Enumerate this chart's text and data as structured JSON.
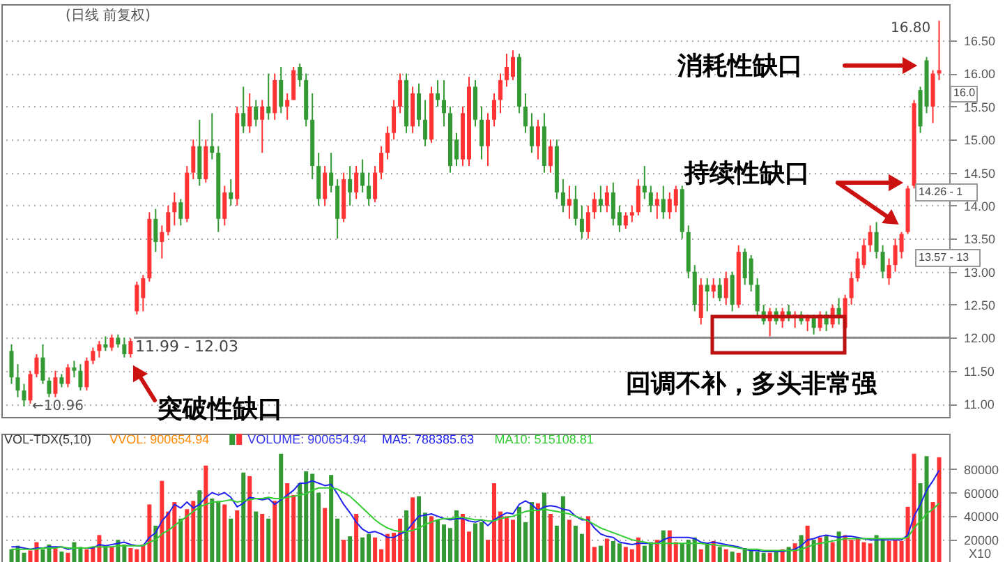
{
  "chart_data": [
    {
      "type": "candlestick",
      "title": "(日线 前复权)",
      "categories": [
        null,
        null,
        null,
        null,
        null,
        null,
        null,
        null,
        null,
        null,
        null,
        null,
        null,
        null,
        null,
        null,
        null,
        null,
        null,
        null,
        null,
        null,
        null,
        null,
        null,
        null,
        null,
        null,
        null,
        null,
        null,
        null,
        null,
        null,
        null,
        null,
        null,
        null,
        null,
        null,
        null,
        null,
        null,
        null,
        null,
        null,
        null,
        null,
        null,
        null,
        null,
        null,
        null,
        null,
        null,
        null,
        null,
        null,
        null,
        null,
        null,
        null,
        null,
        null,
        null,
        null,
        null,
        null,
        null,
        null,
        null,
        null,
        null,
        null,
        null,
        null,
        null,
        null,
        null,
        null,
        null,
        null,
        null,
        null,
        null,
        null,
        null,
        null,
        null,
        null,
        null,
        null,
        null,
        null,
        null,
        null,
        null,
        null,
        null,
        null,
        null,
        null,
        null,
        null,
        null,
        null,
        null,
        null,
        null,
        null,
        null,
        null,
        null,
        null,
        null,
        null,
        null,
        null,
        null,
        null,
        null,
        null,
        null,
        null,
        null,
        null,
        null,
        null,
        null,
        null,
        null,
        null,
        null,
        null,
        null,
        null,
        null,
        null,
        null,
        null,
        null,
        null,
        null,
        null,
        null,
        null,
        null,
        null,
        null
      ],
      "ohlc": [
        [
          11.8,
          11.9,
          11.3,
          11.4
        ],
        [
          11.4,
          11.6,
          11.1,
          11.2
        ],
        [
          11.2,
          11.3,
          10.96,
          11.05
        ],
        [
          11.05,
          11.5,
          11.0,
          11.45
        ],
        [
          11.45,
          11.75,
          11.4,
          11.7
        ],
        [
          11.7,
          11.9,
          11.3,
          11.35
        ],
        [
          11.35,
          11.4,
          11.1,
          11.15
        ],
        [
          11.15,
          11.5,
          11.1,
          11.4
        ],
        [
          11.4,
          11.45,
          11.25,
          11.3
        ],
        [
          11.3,
          11.6,
          11.25,
          11.55
        ],
        [
          11.55,
          11.65,
          11.4,
          11.5
        ],
        [
          11.5,
          11.6,
          11.2,
          11.25
        ],
        [
          11.25,
          11.7,
          11.2,
          11.65
        ],
        [
          11.65,
          11.85,
          11.6,
          11.8
        ],
        [
          11.8,
          11.95,
          11.7,
          11.9
        ],
        [
          11.9,
          12.02,
          11.8,
          11.85
        ],
        [
          11.85,
          12.05,
          11.8,
          12.0
        ],
        [
          12.0,
          12.05,
          11.85,
          11.9
        ],
        [
          11.9,
          12.0,
          11.7,
          11.75
        ],
        [
          11.75,
          11.99,
          11.7,
          11.95
        ],
        [
          12.4,
          12.85,
          12.35,
          12.8
        ],
        [
          12.6,
          12.95,
          12.4,
          12.9
        ],
        [
          12.9,
          13.9,
          12.85,
          13.8
        ],
        [
          13.8,
          13.95,
          13.3,
          13.45
        ],
        [
          13.45,
          13.7,
          13.2,
          13.6
        ],
        [
          13.6,
          14.0,
          13.55,
          13.9
        ],
        [
          13.9,
          14.2,
          13.7,
          14.05
        ],
        [
          14.05,
          14.1,
          13.7,
          13.8
        ],
        [
          13.8,
          14.6,
          13.75,
          14.5
        ],
        [
          14.5,
          15.0,
          14.4,
          14.9
        ],
        [
          14.9,
          15.3,
          14.3,
          14.4
        ],
        [
          14.4,
          15.0,
          14.35,
          14.9
        ],
        [
          14.9,
          15.4,
          14.7,
          14.8
        ],
        [
          14.8,
          14.9,
          13.6,
          13.8
        ],
        [
          13.8,
          14.3,
          13.7,
          14.2
        ],
        [
          14.2,
          14.4,
          14.0,
          14.1
        ],
        [
          14.1,
          15.5,
          14.0,
          15.4
        ],
        [
          15.4,
          15.8,
          15.1,
          15.2
        ],
        [
          15.2,
          15.7,
          15.1,
          15.5
        ],
        [
          15.5,
          15.6,
          15.2,
          15.3
        ],
        [
          15.3,
          15.6,
          14.8,
          15.5
        ],
        [
          15.5,
          16.0,
          15.3,
          15.4
        ],
        [
          15.4,
          16.0,
          15.3,
          15.9
        ],
        [
          15.9,
          16.1,
          15.4,
          15.5
        ],
        [
          15.5,
          15.7,
          15.3,
          15.6
        ],
        [
          15.6,
          16.1,
          15.6,
          16.05
        ],
        [
          16.1,
          16.15,
          15.8,
          15.9
        ],
        [
          15.9,
          16.0,
          15.2,
          15.3
        ],
        [
          15.3,
          15.7,
          14.4,
          14.6
        ],
        [
          14.6,
          14.8,
          14.0,
          14.1
        ],
        [
          14.1,
          14.6,
          14.0,
          14.5
        ],
        [
          14.5,
          14.8,
          14.2,
          14.3
        ],
        [
          14.3,
          14.4,
          13.5,
          13.8
        ],
        [
          13.8,
          14.5,
          13.75,
          14.4
        ],
        [
          14.4,
          14.6,
          14.0,
          14.2
        ],
        [
          14.2,
          14.6,
          14.1,
          14.5
        ],
        [
          14.5,
          14.7,
          14.2,
          14.3
        ],
        [
          14.3,
          14.5,
          14.0,
          14.1
        ],
        [
          14.1,
          14.6,
          14.05,
          14.5
        ],
        [
          14.5,
          14.9,
          14.4,
          14.8
        ],
        [
          14.8,
          15.2,
          14.7,
          15.1
        ],
        [
          15.1,
          15.6,
          15.0,
          15.5
        ],
        [
          15.5,
          16.0,
          15.4,
          15.9
        ],
        [
          15.9,
          16.0,
          15.1,
          15.2
        ],
        [
          15.2,
          15.8,
          15.1,
          15.7
        ],
        [
          15.7,
          15.85,
          15.2,
          15.3
        ],
        [
          15.3,
          15.6,
          14.9,
          15.0
        ],
        [
          15.0,
          15.8,
          14.95,
          15.7
        ],
        [
          15.7,
          15.9,
          15.5,
          15.6
        ],
        [
          15.6,
          15.9,
          15.2,
          15.4
        ],
        [
          15.4,
          15.5,
          14.5,
          14.6
        ],
        [
          15.0,
          15.1,
          14.6,
          14.7
        ],
        [
          14.7,
          15.5,
          14.6,
          15.4
        ],
        [
          14.7,
          15.95,
          14.6,
          15.8
        ],
        [
          15.8,
          15.9,
          15.2,
          15.3
        ],
        [
          15.3,
          15.5,
          14.7,
          14.9
        ],
        [
          14.9,
          15.4,
          14.6,
          15.3
        ],
        [
          15.3,
          15.7,
          15.2,
          15.6
        ],
        [
          15.6,
          16.0,
          15.4,
          15.9
        ],
        [
          15.9,
          16.3,
          15.8,
          16.1
        ],
        [
          15.95,
          16.35,
          15.9,
          16.25
        ],
        [
          16.25,
          16.3,
          15.4,
          15.5
        ],
        [
          15.5,
          15.7,
          15.1,
          15.2
        ],
        [
          15.2,
          15.4,
          14.8,
          14.9
        ],
        [
          14.9,
          15.3,
          14.7,
          15.2
        ],
        [
          15.2,
          15.4,
          14.5,
          14.6
        ],
        [
          14.6,
          15.0,
          14.5,
          14.9
        ],
        [
          14.9,
          15.0,
          14.1,
          14.2
        ],
        [
          14.2,
          14.4,
          13.9,
          14.0
        ],
        [
          14.0,
          14.3,
          13.8,
          14.1
        ],
        [
          14.1,
          14.3,
          13.7,
          13.8
        ],
        [
          13.8,
          14.0,
          13.5,
          13.6
        ],
        [
          13.6,
          14.0,
          13.5,
          13.9
        ],
        [
          13.9,
          14.2,
          13.8,
          14.1
        ],
        [
          14.1,
          14.3,
          13.9,
          14.0
        ],
        [
          14.0,
          14.3,
          13.9,
          14.2
        ],
        [
          14.2,
          14.35,
          13.7,
          13.8
        ],
        [
          13.9,
          14.0,
          13.6,
          13.7
        ],
        [
          13.7,
          13.9,
          13.65,
          13.85
        ],
        [
          13.85,
          14.0,
          13.75,
          13.9
        ],
        [
          13.9,
          14.4,
          13.85,
          14.3
        ],
        [
          14.3,
          14.6,
          14.1,
          14.2
        ],
        [
          14.2,
          14.3,
          13.9,
          14.0
        ],
        [
          14.0,
          14.2,
          13.8,
          14.1
        ],
        [
          14.1,
          14.3,
          13.8,
          13.9
        ],
        [
          13.9,
          14.2,
          13.8,
          14.1
        ],
        [
          14.0,
          14.3,
          13.9,
          14.25
        ],
        [
          14.25,
          14.3,
          13.5,
          13.6
        ],
        [
          13.6,
          13.7,
          12.9,
          13.0
        ],
        [
          13.0,
          13.1,
          12.4,
          12.5
        ],
        [
          12.3,
          12.9,
          12.2,
          12.8
        ],
        [
          12.8,
          12.9,
          12.4,
          12.7
        ],
        [
          12.7,
          12.9,
          12.6,
          12.8
        ],
        [
          12.8,
          12.9,
          12.55,
          12.6
        ],
        [
          12.6,
          13.0,
          12.5,
          12.9
        ],
        [
          12.95,
          13.0,
          12.4,
          12.5
        ],
        [
          12.5,
          13.4,
          12.45,
          13.3
        ],
        [
          13.3,
          13.35,
          12.8,
          12.9
        ],
        [
          13.2,
          13.25,
          12.7,
          12.8
        ],
        [
          12.8,
          12.9,
          12.3,
          12.4
        ],
        [
          12.4,
          12.5,
          12.2,
          12.25
        ],
        [
          12.25,
          12.45,
          12.02,
          12.4
        ],
        [
          12.4,
          12.45,
          12.2,
          12.25
        ],
        [
          12.25,
          12.45,
          12.15,
          12.4
        ],
        [
          12.4,
          12.5,
          12.25,
          12.3
        ],
        [
          12.3,
          12.4,
          12.15,
          12.35
        ],
        [
          12.35,
          12.4,
          12.2,
          12.25
        ],
        [
          12.25,
          12.35,
          12.1,
          12.3
        ],
        [
          12.3,
          12.35,
          12.05,
          12.15
        ],
        [
          12.15,
          12.4,
          12.1,
          12.35
        ],
        [
          12.35,
          12.4,
          12.1,
          12.2
        ],
        [
          12.2,
          12.5,
          12.15,
          12.45
        ],
        [
          12.45,
          12.6,
          12.2,
          12.3
        ],
        [
          12.15,
          12.65,
          12.1,
          12.6
        ],
        [
          12.6,
          13.0,
          12.5,
          12.9
        ],
        [
          12.9,
          13.3,
          12.85,
          13.2
        ],
        [
          13.1,
          13.5,
          13.05,
          13.4
        ],
        [
          13.4,
          13.7,
          13.3,
          13.6
        ],
        [
          13.6,
          13.75,
          13.2,
          13.3
        ],
        [
          13.3,
          13.4,
          12.9,
          13.0
        ],
        [
          12.9,
          13.2,
          12.8,
          13.1
        ],
        [
          13.1,
          13.5,
          13.0,
          13.4
        ],
        [
          13.3,
          13.6,
          13.2,
          13.57
        ],
        [
          13.6,
          14.3,
          13.57,
          14.26
        ],
        [
          14.3,
          15.6,
          14.26,
          15.55
        ],
        [
          15.75,
          15.8,
          15.1,
          15.2
        ],
        [
          16.2,
          16.25,
          15.4,
          15.5
        ],
        [
          15.5,
          16.05,
          15.25,
          16.0
        ],
        [
          16.0,
          16.8,
          15.9,
          16.05
        ]
      ],
      "colors": [
        "#339933",
        "#339933",
        "#339933",
        "#ff3333",
        "#ff3333",
        "#339933",
        "#339933",
        "#ff3333",
        "#339933",
        "#ff3333",
        "#339933",
        "#339933",
        "#ff3333",
        "#ff3333",
        "#ff3333",
        "#339933",
        "#ff3333",
        "#339933",
        "#339933",
        "#ff3333",
        "#ff3333",
        "#ff3333",
        "#ff3333",
        "#339933",
        "#ff3333",
        "#ff3333",
        "#ff3333",
        "#339933",
        "#ff3333",
        "#ff3333",
        "#339933",
        "#ff3333",
        "#339933",
        "#339933",
        "#ff3333",
        "#339933",
        "#ff3333",
        "#339933",
        "#ff3333",
        "#339933",
        "#ff3333",
        "#339933",
        "#ff3333",
        "#339933",
        "#ff3333",
        "#ff3333",
        "#339933",
        "#339933",
        "#339933",
        "#339933",
        "#ff3333",
        "#339933",
        "#339933",
        "#ff3333",
        "#339933",
        "#ff3333",
        "#339933",
        "#339933",
        "#ff3333",
        "#ff3333",
        "#ff3333",
        "#ff3333",
        "#ff3333",
        "#339933",
        "#ff3333",
        "#339933",
        "#339933",
        "#ff3333",
        "#339933",
        "#339933",
        "#339933",
        "#339933",
        "#ff3333",
        "#ff3333",
        "#339933",
        "#339933",
        "#ff3333",
        "#ff3333",
        "#ff3333",
        "#ff3333",
        "#ff3333",
        "#339933",
        "#339933",
        "#339933",
        "#ff3333",
        "#339933",
        "#ff3333",
        "#339933",
        "#339933",
        "#ff3333",
        "#339933",
        "#339933",
        "#ff3333",
        "#ff3333",
        "#339933",
        "#ff3333",
        "#339933",
        "#339933",
        "#ff3333",
        "#ff3333",
        "#ff3333",
        "#339933",
        "#339933",
        "#ff3333",
        "#339933",
        "#ff3333",
        "#ff3333",
        "#339933",
        "#339933",
        "#339933",
        "#ff3333",
        "#339933",
        "#ff3333",
        "#339933",
        "#ff3333",
        "#339933",
        "#ff3333",
        "#339933",
        "#339933",
        "#339933",
        "#339933",
        "#ff3333",
        "#339933",
        "#ff3333",
        "#339933",
        "#ff3333",
        "#339933",
        "#ff3333",
        "#339933",
        "#ff3333",
        "#339933",
        "#ff3333",
        "#339933",
        "#ff3333",
        "#ff3333",
        "#ff3333",
        "#ff3333",
        "#ff3333",
        "#339933",
        "#339933",
        "#ff3333",
        "#ff3333",
        "#ff3333",
        "#ff3333",
        "#ff3333",
        "#339933",
        "#339933",
        "#ff3333",
        "#ff3333"
      ],
      "ylim": [
        10.8,
        17.05
      ],
      "yticks": [
        {
          "value": 11.0,
          "label": "11.00"
        },
        {
          "value": 11.5,
          "label": "11.50"
        },
        {
          "value": 12.0,
          "label": "12.00"
        },
        {
          "value": 12.5,
          "label": "12.50"
        },
        {
          "value": 13.0,
          "label": "13.00"
        },
        {
          "value": 13.5,
          "label": "13.50"
        },
        {
          "value": 14.0,
          "label": "14.00"
        },
        {
          "value": 14.5,
          "label": "14.50"
        },
        {
          "value": 15.0,
          "label": "15.00"
        },
        {
          "value": 15.5,
          "label": "15.50"
        },
        {
          "value": 16.0,
          "label": "16.00"
        },
        {
          "value": 16.5,
          "label": "16.50"
        }
      ],
      "grid": "y",
      "tick_labels": "y",
      "ref_lines": [
        {
          "axis": "y",
          "value": 12.0,
          "color": "#888888"
        }
      ],
      "annotations": [
        "←10.96",
        "11.99 - 12.03",
        "突破性缺口",
        "回调不补，多头非常强",
        "持续性缺口",
        "消耗性缺口",
        "16.80",
        "16.0",
        "14.26 - 1",
        "13.57 - 13"
      ]
    },
    {
      "type": "bar",
      "title": "VOL-TDX(5,10)",
      "legend": "top left",
      "categories": [
        null,
        null,
        null,
        null,
        null,
        null,
        null,
        null,
        null,
        null,
        null,
        null,
        null,
        null,
        null,
        null,
        null,
        null,
        null,
        null,
        null,
        null,
        null,
        null,
        null,
        null,
        null,
        null,
        null,
        null,
        null,
        null,
        null,
        null,
        null,
        null,
        null,
        null,
        null,
        null,
        null,
        null,
        null,
        null,
        null,
        null,
        null,
        null,
        null,
        null,
        null,
        null,
        null,
        null,
        null,
        null,
        null,
        null,
        null,
        null,
        null,
        null,
        null,
        null,
        null,
        null,
        null,
        null,
        null,
        null,
        null,
        null,
        null,
        null,
        null,
        null,
        null,
        null,
        null,
        null,
        null,
        null,
        null,
        null,
        null,
        null,
        null,
        null,
        null,
        null,
        null,
        null,
        null,
        null,
        null,
        null,
        null,
        null,
        null,
        null,
        null,
        null,
        null,
        null,
        null,
        null,
        null,
        null,
        null,
        null,
        null,
        null,
        null,
        null,
        null,
        null,
        null,
        null,
        null,
        null,
        null,
        null,
        null,
        null,
        null,
        null,
        null,
        null,
        null,
        null,
        null,
        null,
        null,
        null,
        null,
        null,
        null,
        null,
        null,
        null,
        null,
        null,
        null,
        null,
        null,
        null,
        null,
        null,
        null
      ],
      "series": [
        {
          "name": "VOLUME: 900654.94",
          "type": "bar",
          "colors": [
            "#339933",
            "#339933",
            "#339933",
            "#ff3333",
            "#ff3333",
            "#339933",
            "#339933",
            "#ff3333",
            "#339933",
            "#ff3333",
            "#339933",
            "#339933",
            "#ff3333",
            "#ff3333",
            "#ff3333",
            "#339933",
            "#ff3333",
            "#339933",
            "#339933",
            "#ff3333",
            "#ff3333",
            "#ff3333",
            "#ff3333",
            "#339933",
            "#ff3333",
            "#ff3333",
            "#ff3333",
            "#339933",
            "#ff3333",
            "#ff3333",
            "#339933",
            "#ff3333",
            "#339933",
            "#339933",
            "#ff3333",
            "#339933",
            "#ff3333",
            "#339933",
            "#ff3333",
            "#339933",
            "#ff3333",
            "#339933",
            "#ff3333",
            "#339933",
            "#ff3333",
            "#ff3333",
            "#339933",
            "#339933",
            "#339933",
            "#339933",
            "#ff3333",
            "#339933",
            "#339933",
            "#ff3333",
            "#339933",
            "#ff3333",
            "#339933",
            "#339933",
            "#ff3333",
            "#ff3333",
            "#ff3333",
            "#ff3333",
            "#ff3333",
            "#339933",
            "#ff3333",
            "#339933",
            "#339933",
            "#ff3333",
            "#339933",
            "#339933",
            "#339933",
            "#339933",
            "#ff3333",
            "#ff3333",
            "#339933",
            "#339933",
            "#ff3333",
            "#ff3333",
            "#ff3333",
            "#ff3333",
            "#ff3333",
            "#339933",
            "#339933",
            "#339933",
            "#ff3333",
            "#339933",
            "#ff3333",
            "#339933",
            "#339933",
            "#ff3333",
            "#339933",
            "#339933",
            "#ff3333",
            "#ff3333",
            "#339933",
            "#ff3333",
            "#339933",
            "#339933",
            "#ff3333",
            "#ff3333",
            "#ff3333",
            "#339933",
            "#339933",
            "#ff3333",
            "#339933",
            "#ff3333",
            "#ff3333",
            "#339933",
            "#339933",
            "#339933",
            "#ff3333",
            "#339933",
            "#ff3333",
            "#339933",
            "#ff3333",
            "#339933",
            "#ff3333",
            "#339933",
            "#339933",
            "#339933",
            "#339933",
            "#ff3333",
            "#339933",
            "#ff3333",
            "#339933",
            "#ff3333",
            "#339933",
            "#ff3333",
            "#339933",
            "#ff3333",
            "#339933",
            "#ff3333",
            "#339933",
            "#ff3333",
            "#ff3333",
            "#ff3333",
            "#ff3333",
            "#ff3333",
            "#339933",
            "#339933",
            "#ff3333",
            "#ff3333",
            "#ff3333",
            "#ff3333",
            "#ff3333",
            "#339933",
            "#339933",
            "#ff3333",
            "#ff3333"
          ],
          "values": [
            12000,
            15000,
            9000,
            11000,
            18000,
            12000,
            16000,
            13000,
            10000,
            9000,
            18000,
            14000,
            12000,
            13000,
            24000,
            15000,
            14000,
            20000,
            16000,
            13000,
            12000,
            16000,
            50000,
            32000,
            70000,
            44000,
            52000,
            38000,
            46000,
            53000,
            62000,
            83000,
            55000,
            53000,
            50000,
            38000,
            45000,
            77000,
            74000,
            44000,
            42000,
            38000,
            53000,
            93000,
            68000,
            58000,
            68000,
            78000,
            76000,
            60000,
            47000,
            75000,
            38000,
            20000,
            23000,
            42000,
            22000,
            25000,
            22000,
            12000,
            25000,
            26000,
            38000,
            45000,
            56000,
            57000,
            43000,
            40000,
            37000,
            33000,
            30000,
            45000,
            42000,
            27000,
            34000,
            35000,
            20000,
            68000,
            44000,
            40000,
            37000,
            48000,
            35000,
            52000,
            51000,
            60000,
            42000,
            32000,
            57000,
            37000,
            32000,
            25000,
            40000,
            14000,
            15000,
            21000,
            19000,
            17000,
            14000,
            12000,
            22000,
            15000,
            18000,
            20000,
            28000,
            28000,
            18000,
            17000,
            20000,
            22000,
            12000,
            16000,
            19000,
            14000,
            12000,
            10000,
            9000,
            13000,
            11000,
            10000,
            9000,
            9000,
            10000,
            12000,
            14000,
            17000,
            24000,
            32000,
            20000,
            22000,
            24000,
            18000,
            27000,
            24000,
            20000,
            22000,
            18000,
            17000,
            24000,
            21000,
            19000,
            20000,
            19000,
            48000,
            93000,
            68000,
            91000,
            52000,
            90000
          ]
        },
        {
          "name": "MA5: 788385.63",
          "type": "line",
          "color": "#2222ee",
          "values": [
            14000,
            14000,
            13000,
            12000,
            13000,
            13000,
            14000,
            14000,
            14000,
            12000,
            13000,
            13000,
            13000,
            13000,
            16000,
            15000,
            16000,
            17000,
            18000,
            16000,
            15000,
            15000,
            22000,
            26000,
            36000,
            42000,
            50000,
            47000,
            52000,
            47000,
            50000,
            56000,
            60000,
            58000,
            60000,
            56000,
            48000,
            51000,
            56000,
            55000,
            54000,
            55000,
            50000,
            54000,
            58000,
            62000,
            68000,
            68000,
            70000,
            68000,
            66000,
            67000,
            59000,
            50000,
            43000,
            35000,
            29000,
            26000,
            27000,
            25000,
            22000,
            22000,
            25000,
            27000,
            34000,
            40000,
            41000,
            42000,
            40000,
            38000,
            37000,
            38000,
            38000,
            36000,
            35000,
            37000,
            32000,
            37000,
            40000,
            43000,
            42000,
            50000,
            53000,
            50000,
            45000,
            48000,
            49000,
            48000,
            46000,
            45000,
            40000,
            37000,
            37000,
            30000,
            25000,
            23000,
            22000,
            18000,
            17000,
            16000,
            17000,
            17000,
            17000,
            17000,
            20000,
            22000,
            22000,
            22000,
            22000,
            21000,
            18000,
            17000,
            18000,
            17000,
            16000,
            15000,
            14000,
            12000,
            11000,
            11000,
            10000,
            10000,
            10000,
            10000,
            11000,
            12000,
            15000,
            20000,
            21000,
            23000,
            24000,
            23000,
            22000,
            23000,
            23000,
            22000,
            21000,
            20000,
            20000,
            20000,
            20000,
            20000,
            20000,
            24000,
            40000,
            50000,
            62000,
            70000,
            79000
          ]
        },
        {
          "name": "MA10: 515108.81",
          "type": "line",
          "color": "#33cc33",
          "values": [
            12000,
            12000,
            12000,
            12000,
            12000,
            13000,
            13000,
            13000,
            14000,
            13000,
            13000,
            13000,
            13000,
            14000,
            14000,
            14000,
            14000,
            15000,
            15000,
            15000,
            15000,
            15000,
            18000,
            20000,
            25000,
            28000,
            32000,
            36000,
            40000,
            44000,
            48000,
            50000,
            52000,
            52000,
            53000,
            54000,
            52000,
            53000,
            54000,
            55000,
            55000,
            56000,
            55000,
            55000,
            56000,
            57000,
            58000,
            59000,
            62000,
            64000,
            64000,
            64000,
            63000,
            60000,
            57000,
            52000,
            47000,
            42000,
            37000,
            33000,
            30000,
            28000,
            27000,
            27000,
            28000,
            30000,
            33000,
            35000,
            37000,
            38000,
            38000,
            39000,
            39000,
            38000,
            37000,
            37000,
            36000,
            36000,
            38000,
            39000,
            40000,
            42000,
            44000,
            45000,
            45000,
            46000,
            45000,
            44000,
            43000,
            42000,
            40000,
            38000,
            36000,
            33000,
            30000,
            28000,
            26000,
            24000,
            22000,
            20000,
            19000,
            18000,
            17000,
            17000,
            17000,
            17000,
            17000,
            17000,
            17000,
            17000,
            17000,
            16000,
            16000,
            15000,
            15000,
            14000,
            13000,
            12000,
            12000,
            12000,
            11000,
            11000,
            11000,
            11000,
            11000,
            11000,
            12000,
            14000,
            16000,
            17000,
            18000,
            19000,
            20000,
            21000,
            21000,
            21000,
            21000,
            21000,
            21000,
            21000,
            21000,
            21000,
            21000,
            22000,
            30000,
            36000,
            42000,
            46000,
            51000
          ]
        }
      ],
      "ylim": [
        0,
        110000
      ],
      "yticks": [
        20000,
        40000,
        60000,
        80000
      ],
      "grid": "y",
      "tick_labels": "y",
      "annotations": [
        "VVOL: 900654.94",
        "X10"
      ]
    }
  ]
}
